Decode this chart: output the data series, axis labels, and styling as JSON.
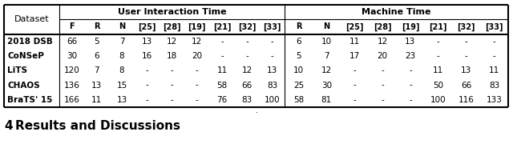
{
  "header_span1": [
    "User Interaction Time",
    "Machine Time"
  ],
  "header2": [
    "F",
    "R",
    "N",
    "[25]",
    "[28]",
    "[19]",
    "[21]",
    "[32]",
    "[33]",
    "R",
    "N",
    "[25]",
    "[28]",
    "[19]",
    "[21]",
    "[32]",
    "[33]"
  ],
  "rows": [
    [
      "2018 DSB",
      "66",
      "5",
      "7",
      "13",
      "12",
      "12",
      "-",
      "-",
      "-",
      "6",
      "10",
      "11",
      "12",
      "13",
      "-",
      "-",
      "-"
    ],
    [
      "CoNSeP",
      "30",
      "6",
      "8",
      "16",
      "18",
      "20",
      "-",
      "-",
      "-",
      "5",
      "7",
      "17",
      "20",
      "23",
      "-",
      "-",
      "-"
    ],
    [
      "LiTS",
      "120",
      "7",
      "8",
      "-",
      "-",
      "-",
      "11",
      "12",
      "13",
      "10",
      "12",
      "-",
      "-",
      "-",
      "11",
      "13",
      "11"
    ],
    [
      "CHAOS",
      "136",
      "13",
      "15",
      "-",
      "-",
      "-",
      "58",
      "66",
      "83",
      "25",
      "30",
      "-",
      "-",
      "-",
      "50",
      "66",
      "83"
    ],
    [
      "BraTS' 15",
      "166",
      "11",
      "13",
      "-",
      "-",
      "-",
      "76",
      "83",
      "100",
      "58",
      "81",
      "-",
      "-",
      "-",
      "100",
      "116",
      "133"
    ]
  ],
  "footer_num": "4",
  "footer_text": "Results and Discussions",
  "bg_color": "#ffffff",
  "text_color": "#000000"
}
